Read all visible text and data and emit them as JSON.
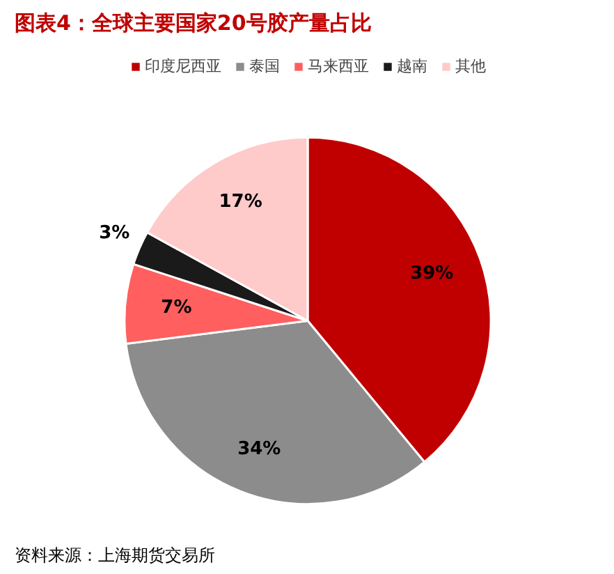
{
  "chart_data": {
    "type": "pie",
    "title": "图表4：全球主要国家20号胶产量占比",
    "categories": [
      "印度尼西亚",
      "泰国",
      "马来西亚",
      "越南",
      "其他"
    ],
    "values": [
      39,
      34,
      7,
      3,
      17
    ],
    "colors": [
      "#c00000",
      "#8c8c8c",
      "#ff5f5f",
      "#1a1a1a",
      "#ffcaca"
    ],
    "data_labels": true,
    "value_labels": [
      "39%",
      "34%",
      "7%",
      "3%",
      "17%"
    ],
    "legend": "top",
    "annotations": [
      "资料来源：上海期货交易所"
    ]
  }
}
